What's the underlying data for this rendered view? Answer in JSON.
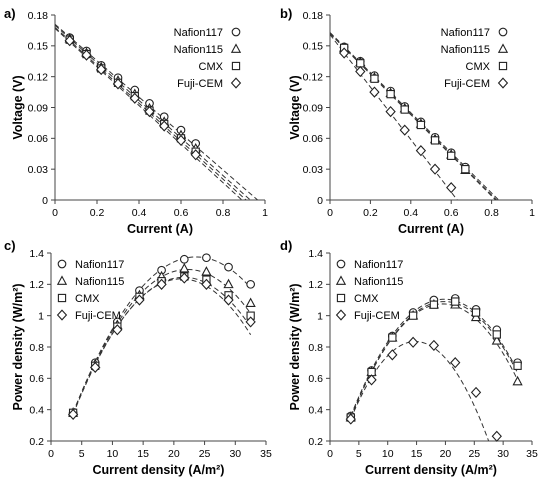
{
  "chart_data": [
    {
      "type": "scatter",
      "panel_label": "a)",
      "xlabel": "Current (A)",
      "ylabel": "Voltage (V)",
      "xlim": [
        0,
        1
      ],
      "ylim": [
        0,
        0.18
      ],
      "xticks": [
        "0",
        "0.2",
        "0.4",
        "0.6",
        "0.8",
        "1"
      ],
      "yticks": [
        "0",
        "0.03",
        "0.06",
        "0.09",
        "0.12",
        "0.15",
        "0.18"
      ],
      "legend_position": "top-right",
      "series": [
        {
          "name": "Nafion117",
          "marker": "circle",
          "x": [
            0.07,
            0.15,
            0.22,
            0.3,
            0.38,
            0.45,
            0.52,
            0.6,
            0.67
          ],
          "y": [
            0.158,
            0.145,
            0.131,
            0.119,
            0.107,
            0.094,
            0.081,
            0.068,
            0.055
          ],
          "fit": [
            [
              0,
              0.171
            ],
            [
              0.965,
              0
            ]
          ]
        },
        {
          "name": "Nafion115",
          "marker": "triangle",
          "x": [
            0.07,
            0.15,
            0.22,
            0.3,
            0.38,
            0.45,
            0.52,
            0.6,
            0.67
          ],
          "y": [
            0.157,
            0.143,
            0.129,
            0.116,
            0.103,
            0.089,
            0.076,
            0.063,
            0.05
          ],
          "fit": [
            [
              0,
              0.17
            ],
            [
              0.93,
              0
            ]
          ]
        },
        {
          "name": "CMX",
          "marker": "square",
          "x": [
            0.07,
            0.15,
            0.22,
            0.3,
            0.38,
            0.45,
            0.52,
            0.6,
            0.67
          ],
          "y": [
            0.156,
            0.142,
            0.128,
            0.114,
            0.101,
            0.087,
            0.074,
            0.06,
            0.047
          ],
          "fit": [
            [
              0,
              0.168
            ],
            [
              0.91,
              0
            ]
          ]
        },
        {
          "name": "Fuji-CEM",
          "marker": "diamond",
          "x": [
            0.07,
            0.15,
            0.22,
            0.3,
            0.38,
            0.45,
            0.52,
            0.6,
            0.67
          ],
          "y": [
            0.155,
            0.141,
            0.127,
            0.113,
            0.099,
            0.086,
            0.072,
            0.058,
            0.044
          ],
          "fit": [
            [
              0,
              0.167
            ],
            [
              0.89,
              0
            ]
          ]
        }
      ]
    },
    {
      "type": "scatter",
      "panel_label": "b)",
      "xlabel": "Current (A)",
      "ylabel": "Voltage (V)",
      "xlim": [
        0,
        1
      ],
      "ylim": [
        0,
        0.18
      ],
      "xticks": [
        "0",
        "0.2",
        "0.4",
        "0.6",
        "0.8",
        "1"
      ],
      "yticks": [
        "0",
        "0.03",
        "0.06",
        "0.09",
        "0.12",
        "0.15",
        "0.18"
      ],
      "legend_position": "top-right",
      "series": [
        {
          "name": "Nafion117",
          "marker": "circle",
          "x": [
            0.07,
            0.15,
            0.22,
            0.3,
            0.37,
            0.45,
            0.52,
            0.6,
            0.67
          ],
          "y": [
            0.149,
            0.135,
            0.121,
            0.106,
            0.091,
            0.076,
            0.061,
            0.046,
            0.032
          ],
          "fit": [
            [
              0,
              0.163
            ],
            [
              0.835,
              0
            ]
          ]
        },
        {
          "name": "Nafion115",
          "marker": "triangle",
          "x": [
            0.07,
            0.15,
            0.22,
            0.3,
            0.37,
            0.45,
            0.52,
            0.6,
            0.67
          ],
          "y": [
            0.148,
            0.134,
            0.119,
            0.104,
            0.089,
            0.074,
            0.059,
            0.044,
            0.029
          ],
          "fit": [
            [
              0,
              0.162
            ],
            [
              0.825,
              0
            ]
          ]
        },
        {
          "name": "CMX",
          "marker": "square",
          "x": [
            0.07,
            0.15,
            0.22,
            0.3,
            0.37,
            0.45,
            0.52,
            0.6,
            0.67
          ],
          "y": [
            0.148,
            0.133,
            0.118,
            0.103,
            0.088,
            0.073,
            0.058,
            0.043,
            0.03
          ],
          "fit": [
            [
              0,
              0.162
            ],
            [
              0.82,
              0
            ]
          ]
        },
        {
          "name": "Fuji-CEM",
          "marker": "diamond",
          "x": [
            0.07,
            0.15,
            0.22,
            0.3,
            0.37,
            0.45,
            0.52,
            0.6
          ],
          "y": [
            0.143,
            0.125,
            0.105,
            0.086,
            0.068,
            0.048,
            0.03,
            0.012
          ],
          "fit": [
            [
              0,
              0.161
            ],
            [
              0.63,
              0
            ]
          ]
        }
      ]
    },
    {
      "type": "scatter",
      "panel_label": "c)",
      "xlabel": "Current density (A/m²)",
      "ylabel": "Power density (W/m²)",
      "xlim": [
        0,
        35
      ],
      "ylim": [
        0.2,
        1.4
      ],
      "xticks": [
        "0",
        "5",
        "10",
        "15",
        "20",
        "25",
        "30",
        "35"
      ],
      "yticks": [
        "0.2",
        "0.4",
        "0.6",
        "0.8",
        "1",
        "1.2",
        "1.4"
      ],
      "legend_position": "top-left",
      "series": [
        {
          "name": "Nafion117",
          "marker": "circle",
          "x": [
            3.6,
            7.2,
            10.8,
            14.4,
            18.0,
            21.7,
            25.3,
            28.9,
            32.5
          ],
          "y": [
            0.38,
            0.7,
            0.96,
            1.16,
            1.29,
            1.36,
            1.37,
            1.31,
            1.2
          ],
          "fit_peak": [
            23.6,
            1.375
          ],
          "fit_range": [
            3.6,
            32.5
          ]
        },
        {
          "name": "Nafion115",
          "marker": "triangle",
          "x": [
            3.6,
            7.2,
            10.8,
            14.4,
            18.0,
            21.7,
            25.3,
            28.9,
            32.5
          ],
          "y": [
            0.38,
            0.69,
            0.94,
            1.13,
            1.25,
            1.3,
            1.28,
            1.2,
            1.08
          ],
          "fit_peak": [
            22.2,
            1.295
          ],
          "fit_range": [
            3.6,
            32.5
          ]
        },
        {
          "name": "CMX",
          "marker": "square",
          "x": [
            3.6,
            7.2,
            10.8,
            14.4,
            18.0,
            21.7,
            25.3,
            28.9,
            32.5
          ],
          "y": [
            0.38,
            0.68,
            0.93,
            1.12,
            1.22,
            1.25,
            1.23,
            1.13,
            1.0
          ],
          "fit_peak": [
            21.6,
            1.245
          ],
          "fit_range": [
            3.6,
            32.5
          ]
        },
        {
          "name": "Fuji-CEM",
          "marker": "diamond",
          "x": [
            3.6,
            7.2,
            10.8,
            14.4,
            18.0,
            21.7,
            25.3,
            28.9,
            32.5
          ],
          "y": [
            0.37,
            0.67,
            0.91,
            1.1,
            1.2,
            1.24,
            1.2,
            1.1,
            0.96
          ],
          "fit_peak": [
            21.2,
            1.235
          ],
          "fit_range": [
            3.6,
            32.5
          ]
        }
      ]
    },
    {
      "type": "scatter",
      "panel_label": "d)",
      "xlabel": "Current density (A/m²)",
      "ylabel": "Power density (W/m²)",
      "xlim": [
        0,
        35
      ],
      "ylim": [
        0.2,
        1.4
      ],
      "xticks": [
        "0",
        "5",
        "10",
        "15",
        "20",
        "25",
        "30",
        "35"
      ],
      "yticks": [
        "0.2",
        "0.4",
        "0.6",
        "0.8",
        "1",
        "1.2",
        "1.4"
      ],
      "legend_position": "top-left",
      "series": [
        {
          "name": "Nafion117",
          "marker": "circle",
          "x": [
            3.6,
            7.2,
            10.8,
            14.4,
            18.0,
            21.7,
            25.3,
            28.9,
            32.5
          ],
          "y": [
            0.36,
            0.65,
            0.87,
            1.02,
            1.1,
            1.11,
            1.04,
            0.91,
            0.7
          ],
          "fit_peak": [
            19.8,
            1.105
          ],
          "fit_range": [
            3.6,
            32.5
          ]
        },
        {
          "name": "Nafion115",
          "marker": "triangle",
          "x": [
            3.6,
            7.2,
            10.8,
            14.4,
            18.0,
            21.7,
            25.3,
            28.9,
            32.5
          ],
          "y": [
            0.35,
            0.64,
            0.86,
            1.0,
            1.07,
            1.07,
            0.99,
            0.84,
            0.58
          ],
          "fit_peak": [
            19.5,
            1.075
          ],
          "fit_range": [
            3.6,
            32.5
          ]
        },
        {
          "name": "CMX",
          "marker": "square",
          "x": [
            3.6,
            7.2,
            10.8,
            14.4,
            18.0,
            21.7,
            25.3,
            28.9,
            32.5
          ],
          "y": [
            0.35,
            0.64,
            0.86,
            1.0,
            1.07,
            1.09,
            1.02,
            0.88,
            0.68
          ],
          "fit_peak": [
            19.8,
            1.09
          ],
          "fit_range": [
            3.6,
            32.5
          ]
        },
        {
          "name": "Fuji-CEM",
          "marker": "diamond",
          "x": [
            3.6,
            7.2,
            10.8,
            14.4,
            18.0,
            21.7,
            25.3,
            28.9
          ],
          "y": [
            0.34,
            0.59,
            0.75,
            0.83,
            0.81,
            0.7,
            0.51,
            0.23
          ],
          "fit_peak": [
            14.8,
            0.835
          ],
          "fit_range": [
            3.6,
            29.5
          ]
        }
      ]
    }
  ]
}
